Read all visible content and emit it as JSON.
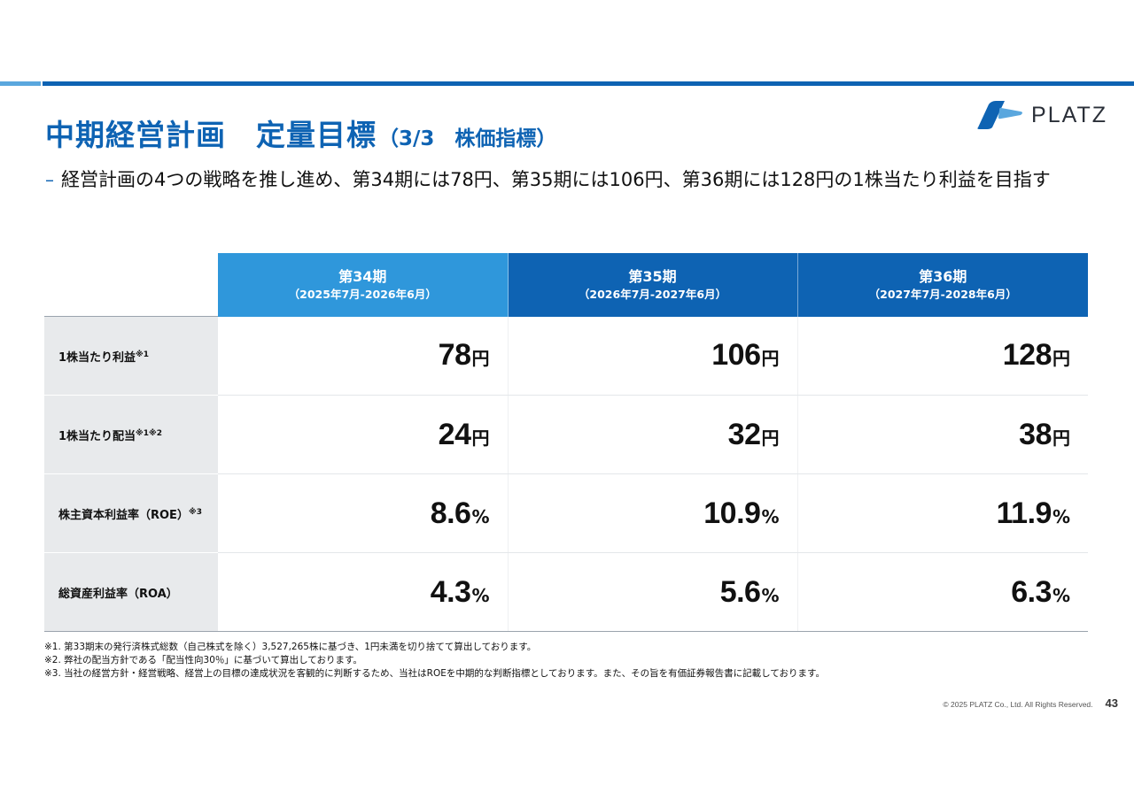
{
  "header": {
    "title_main": "中期経営計画　定量目標",
    "title_sub": "（3/3　株価指標）",
    "logo_text": "PLATZ"
  },
  "lead": {
    "bullet": "–",
    "text": "経営計画の4つの戦略を推し進め、第34期には78円、第35期には106円、第36期には128円の1株当たり利益を目指す"
  },
  "table": {
    "periods": [
      {
        "name": "第34期",
        "range": "（2025年7月-2026年6月）"
      },
      {
        "name": "第35期",
        "range": "（2026年7月-2027年6月）"
      },
      {
        "name": "第36期",
        "range": "（2027年7月-2028年6月）"
      }
    ],
    "rows": [
      {
        "label": "1株当たり利益",
        "note": "※1",
        "cells": [
          {
            "value": "78",
            "unit": "円"
          },
          {
            "value": "106",
            "unit": "円"
          },
          {
            "value": "128",
            "unit": "円"
          }
        ]
      },
      {
        "label": "1株当たり配当",
        "note": "※1※2",
        "cells": [
          {
            "value": "24",
            "unit": "円"
          },
          {
            "value": "32",
            "unit": "円"
          },
          {
            "value": "38",
            "unit": "円"
          }
        ]
      },
      {
        "label": "株主資本利益率（ROE）",
        "note": "※3",
        "cells": [
          {
            "value": "8.6",
            "unit": "%"
          },
          {
            "value": "10.9",
            "unit": "%"
          },
          {
            "value": "11.9",
            "unit": "%"
          }
        ]
      },
      {
        "label": "総資産利益率（ROA）",
        "note": "",
        "cells": [
          {
            "value": "4.3",
            "unit": "%"
          },
          {
            "value": "5.6",
            "unit": "%"
          },
          {
            "value": "6.3",
            "unit": "%"
          }
        ]
      }
    ]
  },
  "notes": [
    "※1. 第33期末の発行済株式総数（自己株式を除く）3,527,265株に基づき、1円未満を切り捨てて算出しております。",
    "※2. 弊社の配当方針である「配当性向30％」に基づいて算出しております。",
    "※3. 当社の経営方針・経営戦略、経営上の目標の達成状況を客観的に判断するため、当社はROEを中期的な判断指標としております。また、その旨を有価証券報告書に記載しております。"
  ],
  "footer": {
    "copyright": "© 2025 PLATZ Co., Ltd. All Rights Reserved.",
    "page_number": "43"
  },
  "colors": {
    "brand_blue": "#0e63b3",
    "light_blue": "#2f97db",
    "accent_light": "#5aa7de",
    "label_bg": "#e8eaec"
  }
}
